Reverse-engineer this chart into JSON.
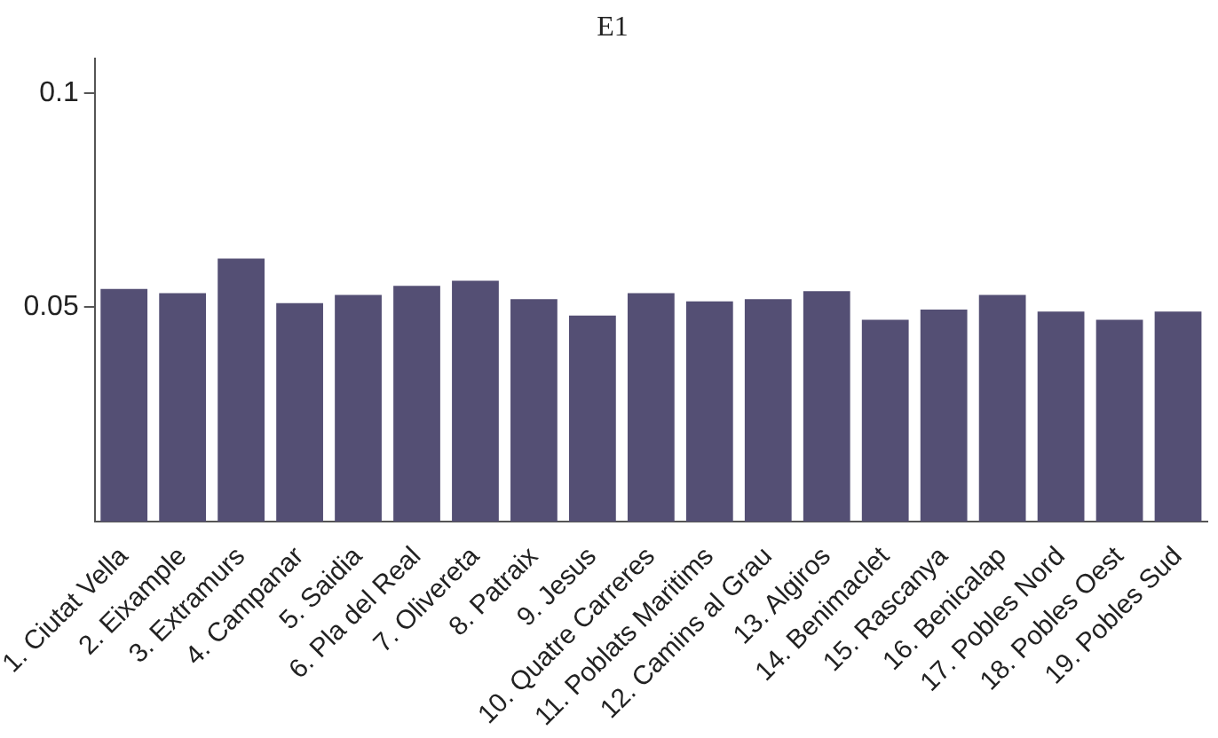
{
  "chart_data": {
    "type": "bar",
    "title": "E1",
    "categories": [
      "1. Ciutat Vella",
      "2. Eixample",
      "3. Extramurs",
      "4. Campanar",
      "5. Saidia",
      "6. Pla del Real",
      "7. Olivereta",
      "8. Patraix",
      "9. Jesus",
      "10. Quatre Carreres",
      "11. Poblats Maritims",
      "12. Camins al Grau",
      "13. Algiros",
      "14. Benimaclet",
      "15. Rascanya",
      "16. Benicalap",
      "17. Pobles Nord",
      "18. Pobles Oest",
      "19. Pobles Sud"
    ],
    "values": [
      0.0543,
      0.0533,
      0.0614,
      0.051,
      0.0529,
      0.055,
      0.0562,
      0.0519,
      0.0481,
      0.0533,
      0.0514,
      0.0519,
      0.0538,
      0.0471,
      0.0495,
      0.0529,
      0.049,
      0.0471,
      0.049
    ],
    "color": "#544f74",
    "ylim": [
      0,
      0.108
    ],
    "yticks": [
      0.05,
      0.1
    ],
    "grid": false,
    "legend": false
  }
}
